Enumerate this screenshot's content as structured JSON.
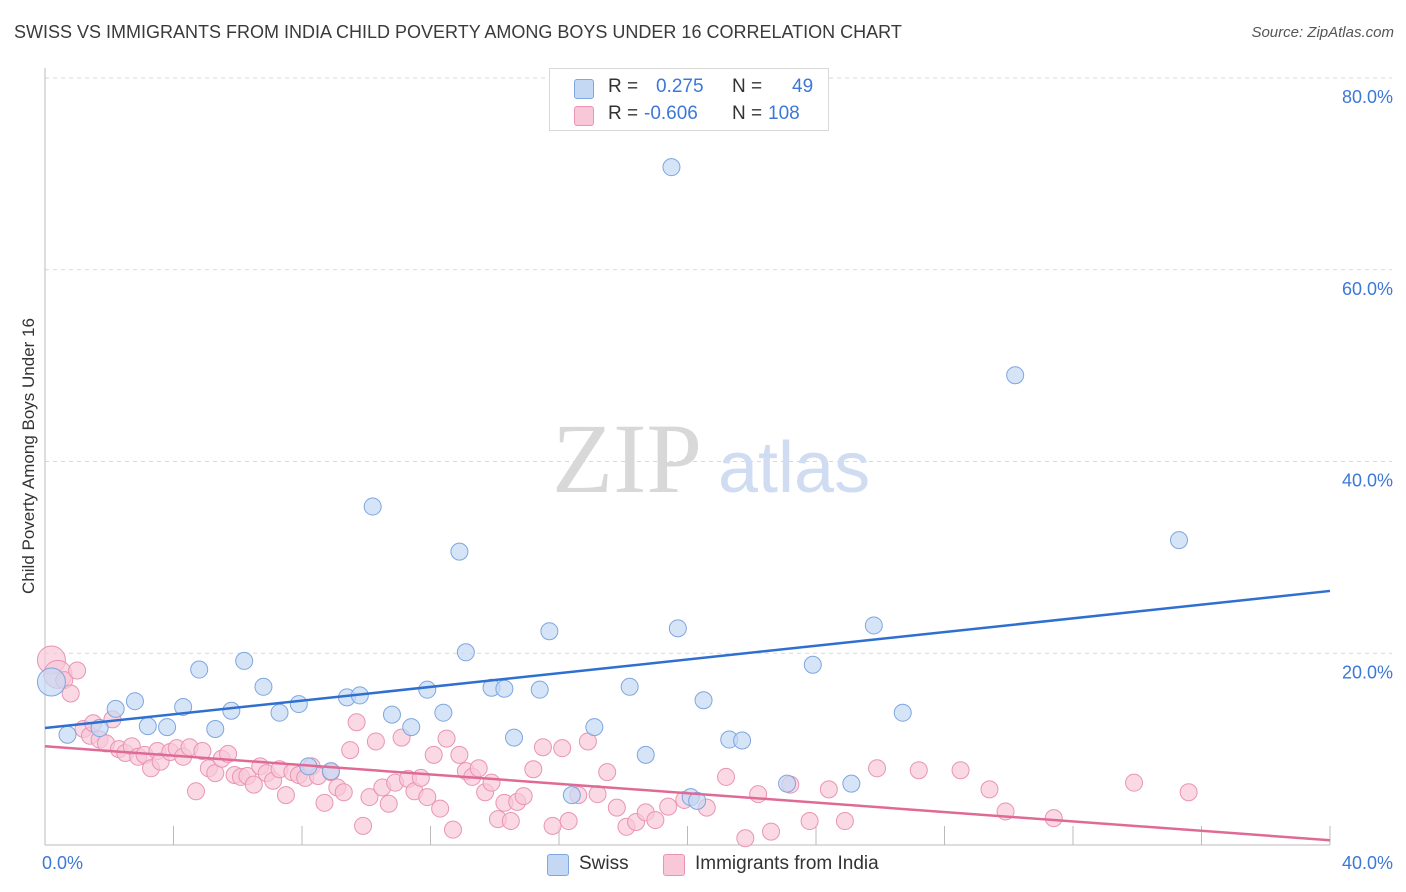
{
  "title": "SWISS VS IMMIGRANTS FROM INDIA CHILD POVERTY AMONG BOYS UNDER 16 CORRELATION CHART",
  "source": "Source: ZipAtlas.com",
  "watermark": {
    "zip": "ZIP",
    "atlas": "atlas"
  },
  "legend": {
    "swiss": {
      "r_label": "R =",
      "r_value": "0.275",
      "n_label": "N =",
      "n_value": "49"
    },
    "india": {
      "r_label": "R =",
      "r_value": "-0.606",
      "n_label": "N =",
      "n_value": "108"
    }
  },
  "bottom_legend": {
    "swiss": "Swiss",
    "india": "Immigrants from India"
  },
  "colors": {
    "swiss_fill": "#c5d8f3",
    "swiss_stroke": "#7ea6e0",
    "swiss_line": "#2f6fd0",
    "india_fill": "#f8c8d8",
    "india_stroke": "#e995b2",
    "india_line": "#e06a96",
    "tick_text": "#3c78d8",
    "grid": "#d7d7d7"
  },
  "chart_data": {
    "type": "scatter",
    "title": "SWISS VS IMMIGRANTS FROM INDIA CHILD POVERTY AMONG BOYS UNDER 16 CORRELATION CHART",
    "xlabel": "",
    "ylabel": "Child Poverty Among Boys Under 16",
    "xlim": [
      0,
      40
    ],
    "ylim": [
      0,
      80
    ],
    "x_ticks": [
      "0.0%",
      "40.0%"
    ],
    "y_ticks": [
      "80.0%",
      "60.0%",
      "40.0%",
      "20.0%"
    ],
    "y_tick_values": [
      80,
      60,
      40,
      20
    ],
    "grid": true,
    "series": [
      {
        "name": "Swiss",
        "trend": {
          "x": [
            0,
            40
          ],
          "y": [
            12.2,
            26.5
          ]
        },
        "points": [
          [
            0.2,
            17.0
          ],
          [
            0.7,
            11.5
          ],
          [
            1.7,
            12.2
          ],
          [
            2.2,
            14.2
          ],
          [
            2.8,
            15.0
          ],
          [
            3.2,
            12.4
          ],
          [
            3.8,
            12.3
          ],
          [
            4.3,
            14.4
          ],
          [
            4.8,
            18.3
          ],
          [
            5.3,
            12.1
          ],
          [
            5.8,
            14.0
          ],
          [
            6.2,
            19.2
          ],
          [
            6.8,
            16.5
          ],
          [
            7.3,
            13.8
          ],
          [
            7.9,
            14.7
          ],
          [
            8.2,
            8.2
          ],
          [
            8.9,
            7.7
          ],
          [
            9.4,
            15.4
          ],
          [
            9.8,
            15.6
          ],
          [
            10.2,
            35.3
          ],
          [
            10.8,
            13.6
          ],
          [
            11.4,
            12.3
          ],
          [
            11.9,
            16.2
          ],
          [
            12.4,
            13.8
          ],
          [
            12.9,
            30.6
          ],
          [
            13.1,
            20.1
          ],
          [
            13.9,
            16.4
          ],
          [
            14.3,
            16.3
          ],
          [
            14.6,
            11.2
          ],
          [
            15.4,
            16.2
          ],
          [
            15.7,
            22.3
          ],
          [
            16.4,
            5.2
          ],
          [
            17.1,
            12.3
          ],
          [
            18.2,
            16.5
          ],
          [
            18.7,
            9.4
          ],
          [
            19.5,
            70.7
          ],
          [
            19.7,
            22.6
          ],
          [
            20.1,
            5.0
          ],
          [
            20.5,
            15.1
          ],
          [
            21.3,
            11.0
          ],
          [
            21.7,
            10.9
          ],
          [
            23.1,
            6.4
          ],
          [
            23.9,
            18.8
          ],
          [
            25.1,
            6.4
          ],
          [
            25.8,
            22.9
          ],
          [
            26.7,
            13.8
          ],
          [
            30.2,
            49.0
          ],
          [
            35.3,
            31.8
          ],
          [
            20.3,
            4.6
          ]
        ]
      },
      {
        "name": "Immigrants from India",
        "trend": {
          "x": [
            0,
            40
          ],
          "y": [
            10.3,
            0.5
          ]
        },
        "points": [
          [
            0.2,
            19.3
          ],
          [
            0.4,
            17.8
          ],
          [
            0.6,
            17.2
          ],
          [
            0.8,
            15.8
          ],
          [
            1.0,
            18.2
          ],
          [
            1.2,
            12.1
          ],
          [
            1.4,
            11.4
          ],
          [
            1.5,
            12.7
          ],
          [
            1.7,
            11.0
          ],
          [
            1.9,
            10.6
          ],
          [
            2.1,
            13.1
          ],
          [
            2.3,
            10.0
          ],
          [
            2.5,
            9.6
          ],
          [
            2.7,
            10.3
          ],
          [
            2.9,
            9.2
          ],
          [
            3.1,
            9.4
          ],
          [
            3.3,
            8.0
          ],
          [
            3.5,
            9.8
          ],
          [
            3.6,
            8.7
          ],
          [
            3.9,
            9.7
          ],
          [
            4.1,
            10.1
          ],
          [
            4.3,
            9.2
          ],
          [
            4.5,
            10.2
          ],
          [
            4.7,
            5.6
          ],
          [
            4.9,
            9.8
          ],
          [
            5.1,
            8.0
          ],
          [
            5.3,
            7.5
          ],
          [
            5.5,
            9.0
          ],
          [
            5.7,
            9.5
          ],
          [
            5.9,
            7.3
          ],
          [
            6.1,
            7.1
          ],
          [
            6.3,
            7.2
          ],
          [
            6.5,
            6.3
          ],
          [
            6.7,
            8.2
          ],
          [
            6.9,
            7.5
          ],
          [
            7.1,
            6.7
          ],
          [
            7.3,
            7.9
          ],
          [
            7.5,
            5.2
          ],
          [
            7.7,
            7.6
          ],
          [
            7.9,
            7.3
          ],
          [
            8.1,
            7.0
          ],
          [
            8.3,
            8.2
          ],
          [
            8.5,
            7.2
          ],
          [
            8.7,
            4.4
          ],
          [
            8.9,
            7.6
          ],
          [
            9.1,
            6.0
          ],
          [
            9.3,
            5.5
          ],
          [
            9.5,
            9.9
          ],
          [
            9.7,
            12.8
          ],
          [
            9.9,
            2.0
          ],
          [
            10.1,
            5.0
          ],
          [
            10.3,
            10.8
          ],
          [
            10.5,
            6.0
          ],
          [
            10.7,
            4.3
          ],
          [
            10.9,
            6.5
          ],
          [
            11.1,
            11.2
          ],
          [
            11.3,
            6.9
          ],
          [
            11.5,
            5.6
          ],
          [
            11.7,
            7.0
          ],
          [
            11.9,
            5.0
          ],
          [
            12.1,
            9.4
          ],
          [
            12.3,
            3.8
          ],
          [
            12.5,
            11.1
          ],
          [
            12.7,
            1.6
          ],
          [
            12.9,
            9.4
          ],
          [
            13.1,
            7.7
          ],
          [
            13.3,
            7.1
          ],
          [
            13.5,
            8.0
          ],
          [
            13.7,
            5.5
          ],
          [
            13.9,
            6.5
          ],
          [
            14.1,
            2.7
          ],
          [
            14.3,
            4.4
          ],
          [
            14.5,
            2.5
          ],
          [
            14.7,
            4.5
          ],
          [
            14.9,
            5.1
          ],
          [
            15.2,
            7.9
          ],
          [
            15.5,
            10.2
          ],
          [
            15.8,
            2.0
          ],
          [
            16.1,
            10.1
          ],
          [
            16.3,
            2.5
          ],
          [
            16.6,
            5.2
          ],
          [
            16.9,
            10.8
          ],
          [
            17.2,
            5.3
          ],
          [
            17.5,
            7.6
          ],
          [
            17.8,
            3.9
          ],
          [
            18.1,
            1.9
          ],
          [
            18.4,
            2.4
          ],
          [
            18.7,
            3.4
          ],
          [
            19.0,
            2.6
          ],
          [
            19.4,
            4.0
          ],
          [
            19.9,
            4.7
          ],
          [
            20.6,
            3.9
          ],
          [
            21.2,
            7.1
          ],
          [
            21.8,
            0.7
          ],
          [
            22.2,
            5.3
          ],
          [
            22.6,
            1.4
          ],
          [
            23.2,
            6.3
          ],
          [
            23.8,
            2.5
          ],
          [
            24.4,
            5.8
          ],
          [
            24.9,
            2.5
          ],
          [
            25.9,
            8.0
          ],
          [
            27.2,
            7.8
          ],
          [
            28.5,
            7.8
          ],
          [
            29.4,
            5.8
          ],
          [
            29.9,
            3.5
          ],
          [
            31.4,
            2.8
          ],
          [
            33.9,
            6.5
          ],
          [
            35.6,
            5.5
          ]
        ]
      }
    ]
  }
}
